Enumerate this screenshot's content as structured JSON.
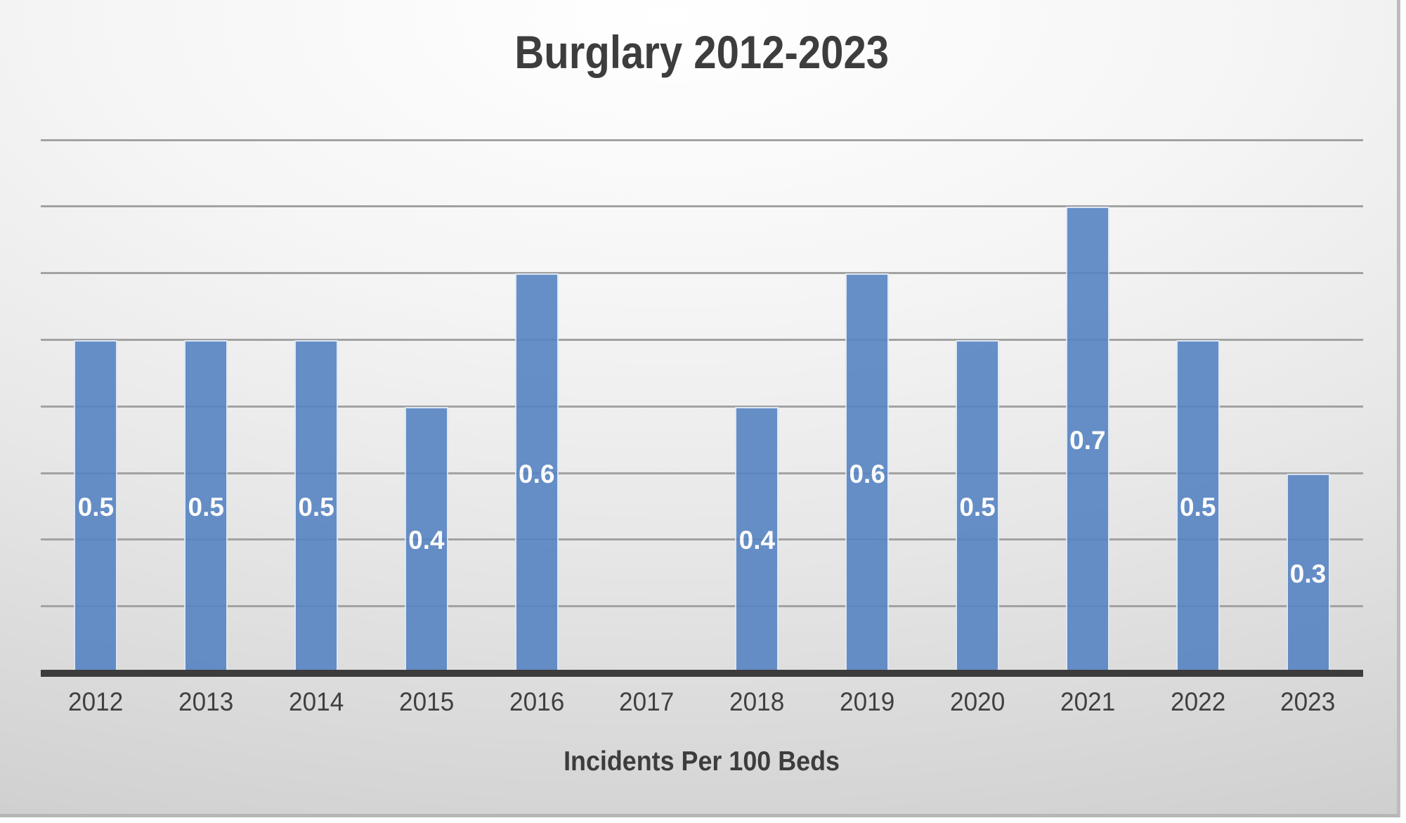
{
  "title": "Burglary 2012-2023",
  "axis_title": "Incidents Per 100 Beds",
  "chart_data": {
    "type": "bar",
    "title": "Burglary 2012-2023",
    "xlabel": "Incidents Per 100 Beds",
    "ylabel": "",
    "categories": [
      "2012",
      "2013",
      "2014",
      "2015",
      "2016",
      "2017",
      "2018",
      "2019",
      "2020",
      "2021",
      "2022",
      "2023"
    ],
    "values": [
      0.5,
      0.5,
      0.5,
      0.4,
      0.6,
      0,
      0.4,
      0.6,
      0.5,
      0.7,
      0.5,
      0.3
    ],
    "data_labels": [
      "0.5",
      "0.5",
      "0.5",
      "0.4",
      "0.6",
      "",
      "0.4",
      "0.6",
      "0.5",
      "0.7",
      "0.5",
      "0.3"
    ],
    "ylim": [
      0,
      0.85
    ],
    "gridline_interval": 0.1,
    "gridline_count": 8,
    "legend": "none",
    "y_axis_labels_visible": false,
    "colors": {
      "bar_fill": "#5784C3",
      "bar_border": "#dce7f4",
      "gridline": "#a2a2a2",
      "axis_line": "#3c3c3c",
      "data_label_text": "#ffffff",
      "tick_label_text": "#404040",
      "title_text": "#3d3d3d",
      "background_edge": "#c3c3c3",
      "background_center": "#ffffff"
    }
  }
}
